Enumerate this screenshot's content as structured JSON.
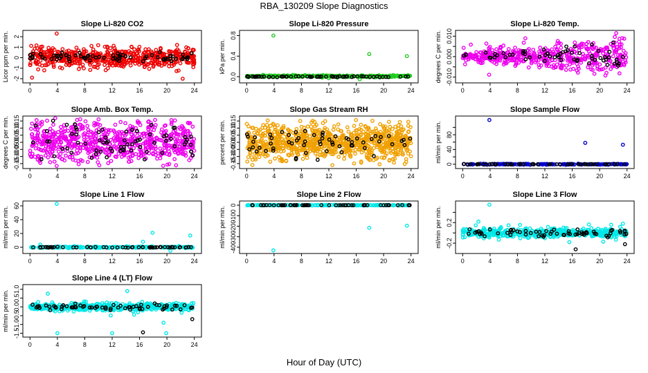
{
  "figure": {
    "title": "RBA_130209  Slope Diagnostics",
    "xlabel": "Hour of Day (UTC)"
  },
  "chart_data": [
    {
      "type": "scatter",
      "title": "Slope Li-820 CO2",
      "ylabel": "Licor ppm per min.",
      "xlim": [
        0,
        24
      ],
      "ylim": [
        -2.2,
        2.4
      ],
      "xticks": [
        0,
        4,
        8,
        12,
        16,
        20,
        24
      ],
      "yticks": [
        -2,
        -1,
        0,
        1,
        2
      ],
      "yticklabels": [
        "-2",
        "-1",
        "0",
        "1",
        "2"
      ],
      "color": "#ee0000",
      "series": [
        {
          "kind": "noise",
          "n": 560,
          "x": [
            0,
            24
          ],
          "center": 0.0,
          "spread": 0.45,
          "tail": 1.3,
          "seed": 11
        },
        {
          "kind": "points",
          "x": [
            3.9,
            22.3,
            0.3
          ],
          "y": [
            2.3,
            -2.0,
            -1.9
          ]
        },
        {
          "kind": "black",
          "n": 70,
          "x": [
            0,
            24
          ],
          "center": 0.05,
          "spread": 0.2,
          "seed": 12
        }
      ]
    },
    {
      "type": "scatter",
      "title": "Slope Li-820 Pressure",
      "ylabel": "kPa per min.",
      "xlim": [
        0,
        24
      ],
      "ylim": [
        -0.08,
        0.86
      ],
      "xticks": [
        0,
        4,
        8,
        12,
        16,
        20,
        24
      ],
      "yticks": [
        0,
        0.4,
        0.8
      ],
      "yticklabels": [
        "0.0",
        "0.4",
        "0.8"
      ],
      "color": "#22cc22",
      "series": [
        {
          "kind": "noise",
          "n": 320,
          "x": [
            0,
            24
          ],
          "center": 0.01,
          "spread": 0.008,
          "tail": 0.03,
          "seed": 21
        },
        {
          "kind": "points",
          "x": [
            3.9,
            17.9,
            23.4,
            16.5,
            12.0
          ],
          "y": [
            0.8,
            0.44,
            0.4,
            -0.05,
            -0.03
          ]
        },
        {
          "kind": "black",
          "n": 60,
          "x": [
            0,
            24
          ],
          "center": 0.0,
          "spread": 0.004,
          "seed": 22
        }
      ]
    },
    {
      "type": "scatter",
      "title": "Slope Li-820 Temp.",
      "ylabel": "degrees C per min.",
      "xlim": [
        0,
        24
      ],
      "ylim": [
        -0.0118,
        0.0118
      ],
      "xticks": [
        0,
        4,
        8,
        12,
        16,
        20,
        24
      ],
      "yticks": [
        -0.01,
        -0.005,
        0,
        0.005,
        0.01
      ],
      "yticklabels": [
        "-0.010",
        "",
        "0.000",
        "",
        "0.010"
      ],
      "color": "#ee00ee",
      "series": [
        {
          "kind": "noise",
          "n": 520,
          "x": [
            0,
            24
          ],
          "center": 0.0,
          "spread": 0.0035,
          "tail": 0.009,
          "seed": 31,
          "grow": true
        },
        {
          "kind": "black",
          "n": 60,
          "x": [
            0,
            24
          ],
          "center": 0.001,
          "spread": 0.0025,
          "seed": 32,
          "grow": true
        }
      ]
    },
    {
      "type": "scatter",
      "title": "Slope Amb. Box Temp.",
      "ylabel": "degrees C per min.",
      "xlim": [
        0,
        24
      ],
      "ylim": [
        -0.17,
        0.17
      ],
      "xticks": [
        0,
        4,
        8,
        12,
        16,
        20,
        24
      ],
      "yticks": [
        -0.15,
        -0.1,
        -0.05,
        0,
        0.05,
        0.1,
        0.15
      ],
      "yticklabels": [
        "-0.15",
        "-0.10",
        "-0.05",
        "0.00",
        "0.05",
        "0.10",
        "0.15"
      ],
      "color": "#ee00ee",
      "series": [
        {
          "kind": "noise",
          "n": 700,
          "x": [
            0,
            24
          ],
          "center": 0.0,
          "spread": 0.07,
          "tail": 0.15,
          "seed": 41
        },
        {
          "kind": "black",
          "n": 70,
          "x": [
            0,
            24
          ],
          "center": 0.0,
          "spread": 0.06,
          "seed": 42
        }
      ]
    },
    {
      "type": "scatter",
      "title": "Slope Gas Stream RH",
      "ylabel": "percent per min.",
      "xlim": [
        0,
        24
      ],
      "ylim": [
        -0.17,
        0.17
      ],
      "xticks": [
        0,
        4,
        8,
        12,
        16,
        20,
        24
      ],
      "yticks": [
        -0.15,
        -0.1,
        -0.05,
        0,
        0.05,
        0.1,
        0.15
      ],
      "yticklabels": [
        "-0.15",
        "-0.10",
        "-0.05",
        "0.00",
        "0.05",
        "0.10",
        "0.15"
      ],
      "color": "#f0a000",
      "series": [
        {
          "kind": "noise",
          "n": 900,
          "x": [
            0,
            24
          ],
          "center": 0.0,
          "spread": 0.06,
          "tail": 0.15,
          "seed": 51
        },
        {
          "kind": "black",
          "n": 60,
          "x": [
            0,
            24
          ],
          "center": 0.0,
          "spread": 0.05,
          "seed": 52
        }
      ]
    },
    {
      "type": "scatter",
      "title": "Slope Sample Flow",
      "ylabel": "ml/min per min.",
      "xlim": [
        0,
        24
      ],
      "ylim": [
        -6,
        125
      ],
      "xticks": [
        0,
        4,
        8,
        12,
        16,
        20,
        24
      ],
      "yticks": [
        0,
        20,
        40,
        60,
        80,
        100
      ],
      "yticklabels": [
        "0",
        "",
        "40",
        "",
        "80",
        ""
      ],
      "color": "#0000cc",
      "series": [
        {
          "kind": "noise",
          "n": 200,
          "x": [
            0,
            24
          ],
          "center": 0.0,
          "spread": 0.6,
          "tail": 1.5,
          "seed": 61
        },
        {
          "kind": "points",
          "x": [
            3.9,
            17.9,
            23.4
          ],
          "y": [
            120,
            58,
            53
          ]
        },
        {
          "kind": "black",
          "n": 50,
          "x": [
            0,
            24
          ],
          "center": 0.0,
          "spread": 0.4,
          "seed": 62
        }
      ]
    },
    {
      "type": "scatter",
      "title": "Slope Line 1 Flow",
      "ylabel": "ml/min per min.",
      "xlim": [
        0,
        24
      ],
      "ylim": [
        -6,
        64
      ],
      "xticks": [
        0,
        4,
        8,
        12,
        16,
        20,
        24
      ],
      "yticks": [
        0,
        20,
        40,
        60
      ],
      "yticklabels": [
        "0",
        "20",
        "40",
        "60"
      ],
      "color": "#00e8e8",
      "series": [
        {
          "kind": "noise",
          "n": 220,
          "x": [
            0,
            24
          ],
          "center": 0.0,
          "spread": 0.5,
          "tail": 2.0,
          "seed": 71
        },
        {
          "kind": "points",
          "x": [
            3.9,
            17.9,
            23.4,
            16.5,
            1.5,
            20.5
          ],
          "y": [
            63,
            21,
            17,
            8,
            4,
            -5
          ]
        },
        {
          "kind": "black",
          "n": 55,
          "x": [
            0,
            24
          ],
          "center": 0.0,
          "spread": 0.3,
          "seed": 72
        }
      ]
    },
    {
      "type": "scatter",
      "title": "Slope Line 2 Flow",
      "ylabel": "ml/min per min.",
      "xlim": [
        0,
        24
      ],
      "ylim": [
        -440,
        20
      ],
      "xticks": [
        0,
        4,
        8,
        12,
        16,
        20,
        24
      ],
      "yticks": [
        -400,
        -300,
        -200,
        -100,
        0
      ],
      "yticklabels": [
        "-400",
        "-300",
        "-200",
        "-100",
        "0"
      ],
      "color": "#00e8e8",
      "series": [
        {
          "kind": "noise",
          "n": 220,
          "x": [
            0,
            24
          ],
          "center": 0.0,
          "spread": 1.0,
          "tail": 3.0,
          "seed": 81
        },
        {
          "kind": "points",
          "x": [
            3.9,
            17.9,
            23.4
          ],
          "y": [
            -430,
            -215,
            -195
          ]
        },
        {
          "kind": "black",
          "n": 55,
          "x": [
            0,
            24
          ],
          "center": 0.0,
          "spread": 0.5,
          "seed": 82
        }
      ]
    },
    {
      "type": "scatter",
      "title": "Slope Line 3 Flow",
      "ylabel": "ml/min per min.",
      "xlim": [
        0,
        24
      ],
      "ylim": [
        -0.36,
        0.58
      ],
      "xticks": [
        0,
        4,
        8,
        12,
        16,
        20,
        24
      ],
      "yticks": [
        -0.2,
        0,
        0.2,
        0.4
      ],
      "yticklabels": [
        "-0.2",
        "",
        "0.2",
        ""
      ],
      "color": "#00e8e8",
      "series": [
        {
          "kind": "noise",
          "n": 520,
          "x": [
            0,
            24
          ],
          "center": 0.0,
          "spread": 0.04,
          "tail": 0.18,
          "seed": 91
        },
        {
          "kind": "points",
          "x": [
            3.9,
            23.4,
            2.3
          ],
          "y": [
            0.55,
            0.18,
            0.22
          ]
        },
        {
          "kind": "black",
          "n": 65,
          "x": [
            0,
            24
          ],
          "center": 0.0,
          "spread": 0.04,
          "seed": 92
        },
        {
          "kind": "blackpts",
          "x": [
            16.5,
            23.7
          ],
          "y": [
            -0.32,
            -0.22
          ]
        }
      ]
    },
    {
      "type": "scatter",
      "title": "Slope Line 4 (LT) Flow",
      "ylabel": "ml/min per min.",
      "xlim": [
        0,
        24
      ],
      "ylim": [
        -1.6,
        1.15
      ],
      "xticks": [
        0,
        4,
        8,
        12,
        16,
        20,
        24
      ],
      "yticks": [
        -1.5,
        -1,
        -0.5,
        0,
        0.5,
        1
      ],
      "yticklabels": [
        "-1.5",
        "-1.0",
        "-0.5",
        "0.0",
        "0.5",
        "1.0"
      ],
      "color": "#00e8e8",
      "series": [
        {
          "kind": "noise",
          "n": 480,
          "x": [
            0,
            24
          ],
          "center": 0.0,
          "spread": 0.1,
          "tail": 0.5,
          "seed": 101
        },
        {
          "kind": "points",
          "x": [
            4.0,
            12.0,
            19.9,
            14.2,
            2.6,
            19.5
          ],
          "y": [
            -1.5,
            -1.5,
            -1.5,
            0.9,
            0.75,
            -0.9
          ]
        },
        {
          "kind": "black",
          "n": 65,
          "x": [
            0,
            24
          ],
          "center": 0.0,
          "spread": 0.08,
          "seed": 102
        },
        {
          "kind": "blackpts",
          "x": [
            16.5,
            23.7
          ],
          "y": [
            -1.45,
            -0.7
          ]
        }
      ]
    }
  ]
}
